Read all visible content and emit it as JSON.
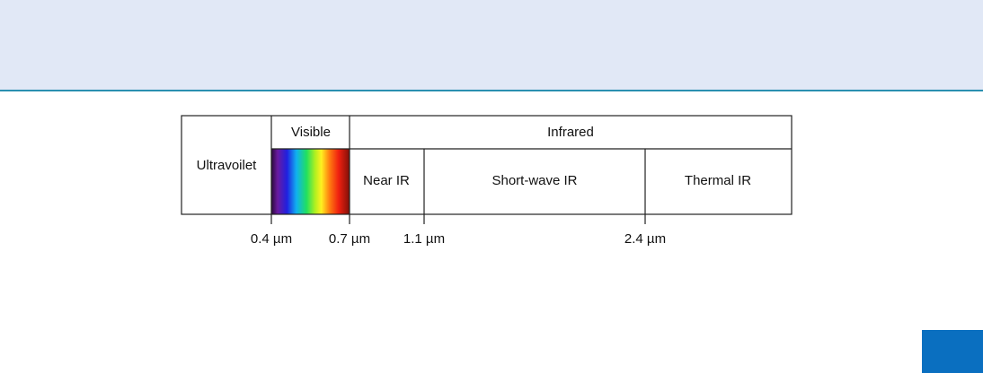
{
  "diagram": {
    "regions": {
      "ultraviolet": "Ultravoilet",
      "visible": "Visible",
      "infrared": "Infrared"
    },
    "infrared_bands": [
      "Near IR",
      "Short-wave IR",
      "Thermal IR"
    ],
    "boundaries": [
      "0.4 µm",
      "0.7 µm",
      "1.1 µm",
      "2.4 µm"
    ]
  }
}
